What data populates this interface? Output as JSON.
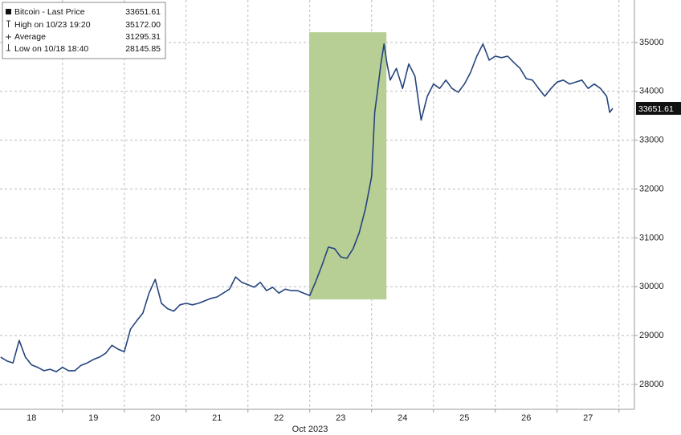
{
  "chart_data": {
    "type": "line",
    "xlabel": "Oct 2023",
    "x": [
      18.0,
      18.1,
      18.2,
      18.3,
      18.4,
      18.5,
      18.6,
      18.7,
      18.8,
      18.9,
      19.0,
      19.1,
      19.2,
      19.3,
      19.4,
      19.5,
      19.6,
      19.7,
      19.8,
      19.9,
      20.0,
      20.1,
      20.2,
      20.3,
      20.4,
      20.5,
      20.6,
      20.7,
      20.8,
      20.9,
      21.0,
      21.1,
      21.2,
      21.3,
      21.4,
      21.5,
      21.6,
      21.7,
      21.8,
      21.9,
      22.0,
      22.1,
      22.2,
      22.3,
      22.4,
      22.5,
      22.6,
      22.7,
      22.8,
      22.9,
      23.0,
      23.1,
      23.2,
      23.3,
      23.4,
      23.5,
      23.6,
      23.7,
      23.8,
      23.9,
      24.0,
      24.05,
      24.1,
      24.15,
      24.2,
      24.25,
      24.3,
      24.4,
      24.5,
      24.6,
      24.7,
      24.8,
      24.9,
      25.0,
      25.1,
      25.2,
      25.3,
      25.4,
      25.5,
      25.6,
      25.7,
      25.8,
      25.9,
      26.0,
      26.1,
      26.2,
      26.3,
      26.4,
      26.5,
      26.6,
      26.7,
      26.8,
      26.9,
      27.0,
      27.1,
      27.2,
      27.3,
      27.4,
      27.5,
      27.6,
      27.7,
      27.8,
      27.85,
      27.9
    ],
    "series": [
      {
        "name": "Bitcoin - Last Price",
        "color": "#24447e",
        "values": [
          28560,
          28480,
          28440,
          28900,
          28560,
          28400,
          28350,
          28280,
          28310,
          28260,
          28350,
          28280,
          28280,
          28390,
          28440,
          28510,
          28560,
          28640,
          28800,
          28720,
          28670,
          29130,
          29300,
          29460,
          29870,
          30150,
          29660,
          29550,
          29500,
          29630,
          29660,
          29630,
          29660,
          29710,
          29760,
          29790,
          29870,
          29950,
          30200,
          30090,
          30040,
          29990,
          30090,
          29920,
          29990,
          29870,
          29950,
          29920,
          29920,
          29870,
          29820,
          30120,
          30450,
          30810,
          30780,
          30610,
          30580,
          30780,
          31110,
          31600,
          32260,
          33570,
          34060,
          34560,
          34970,
          34560,
          34230,
          34470,
          34060,
          34560,
          34310,
          33410,
          33900,
          34150,
          34060,
          34230,
          34060,
          33980,
          34150,
          34390,
          34720,
          34970,
          34640,
          34720,
          34690,
          34720,
          34590,
          34470,
          34260,
          34230,
          34060,
          33900,
          34060,
          34190,
          34230,
          34150,
          34190,
          34230,
          34060,
          34150,
          34060,
          33900,
          33570,
          33651.61
        ]
      }
    ],
    "xlim": [
      17.99,
      28.25
    ],
    "ylim": [
      27490,
      35870
    ],
    "xticks": [
      {
        "value": 18.5,
        "label": "18"
      },
      {
        "value": 19.5,
        "label": "19"
      },
      {
        "value": 20.5,
        "label": "20"
      },
      {
        "value": 21.5,
        "label": "21"
      },
      {
        "value": 22.5,
        "label": "22"
      },
      {
        "value": 23.5,
        "label": "23"
      },
      {
        "value": 24.5,
        "label": "24"
      },
      {
        "value": 25.5,
        "label": "25"
      },
      {
        "value": 26.5,
        "label": "26"
      },
      {
        "value": 27.5,
        "label": "27"
      }
    ],
    "xgrid": [
      19,
      20,
      21,
      22,
      23,
      24,
      25,
      26,
      27,
      28
    ],
    "yticks": [
      28000,
      29000,
      30000,
      31000,
      32000,
      33000,
      34000,
      35000
    ],
    "grid": true,
    "last_price": 33651.61,
    "highlight": {
      "x": [
        22.99,
        24.24
      ],
      "y": [
        29740,
        35210
      ],
      "color": "#b7cf94"
    },
    "legend": [
      {
        "label": "Bitcoin - Last Price",
        "value": "33651.61"
      },
      {
        "label": "High on 10/23 19:20",
        "value": "35172.00"
      },
      {
        "label": "Average",
        "value": "31295.31"
      },
      {
        "label": "Low on 10/18 18:40",
        "value": "28145.85"
      }
    ]
  }
}
